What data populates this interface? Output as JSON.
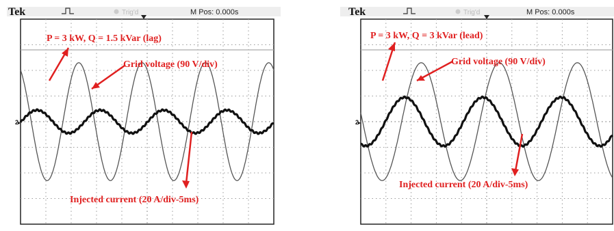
{
  "chart_data": [
    {
      "type": "line",
      "header": {
        "brand": "Tek",
        "trigger_status": "Trig'd",
        "mpos": "M Pos: 0.000s"
      },
      "annotations": {
        "power": "P = 3 kW, Q = 1.5 kVar (lag)",
        "voltage": "Grid voltage (90 V/div)",
        "current": "Injected current (20 A/div-5ms)"
      },
      "channel_marker": "2",
      "grid": {
        "x_divisions": 10,
        "y_divisions": 8,
        "on": true
      },
      "time_per_div_ms": 5,
      "series": [
        {
          "name": "Grid voltage (90 V/div)",
          "amplitude_div": 2.3,
          "period_div": 2.5,
          "peak_time_div": 2.3,
          "color": "#555555",
          "stroke": "thin"
        },
        {
          "name": "Injected current (20 A/div-5ms)",
          "amplitude_div": 0.45,
          "period_div": 2.5,
          "peak_time_div": 3.15,
          "color": "#111111",
          "stroke": "thick"
        }
      ],
      "annotation_colors": {
        "text": "#e02020",
        "arrow": "#e02020"
      }
    },
    {
      "type": "line",
      "header": {
        "brand": "Tek",
        "trigger_status": "Trig'd",
        "mpos": "M Pos: 0.000s"
      },
      "annotations": {
        "power": "P = 3 kW, Q = 3 kVar (lead)",
        "voltage": "Grid voltage (90 V/div)",
        "current": "Injected current (20 A/div-5ms)"
      },
      "channel_marker": "2",
      "grid": {
        "x_divisions": 10,
        "y_divisions": 8,
        "on": true
      },
      "time_per_div_ms": 5,
      "series": [
        {
          "name": "Grid voltage (90 V/div)",
          "amplitude_div": 2.3,
          "period_div": 3.1,
          "peak_time_div": 2.4,
          "color": "#555555",
          "stroke": "thin"
        },
        {
          "name": "Injected current (20 A/div-5ms)",
          "amplitude_div": 0.95,
          "period_div": 3.1,
          "peak_time_div": 1.75,
          "color": "#111111",
          "stroke": "thick"
        }
      ],
      "annotation_colors": {
        "text": "#e02020",
        "arrow": "#e02020"
      }
    }
  ]
}
